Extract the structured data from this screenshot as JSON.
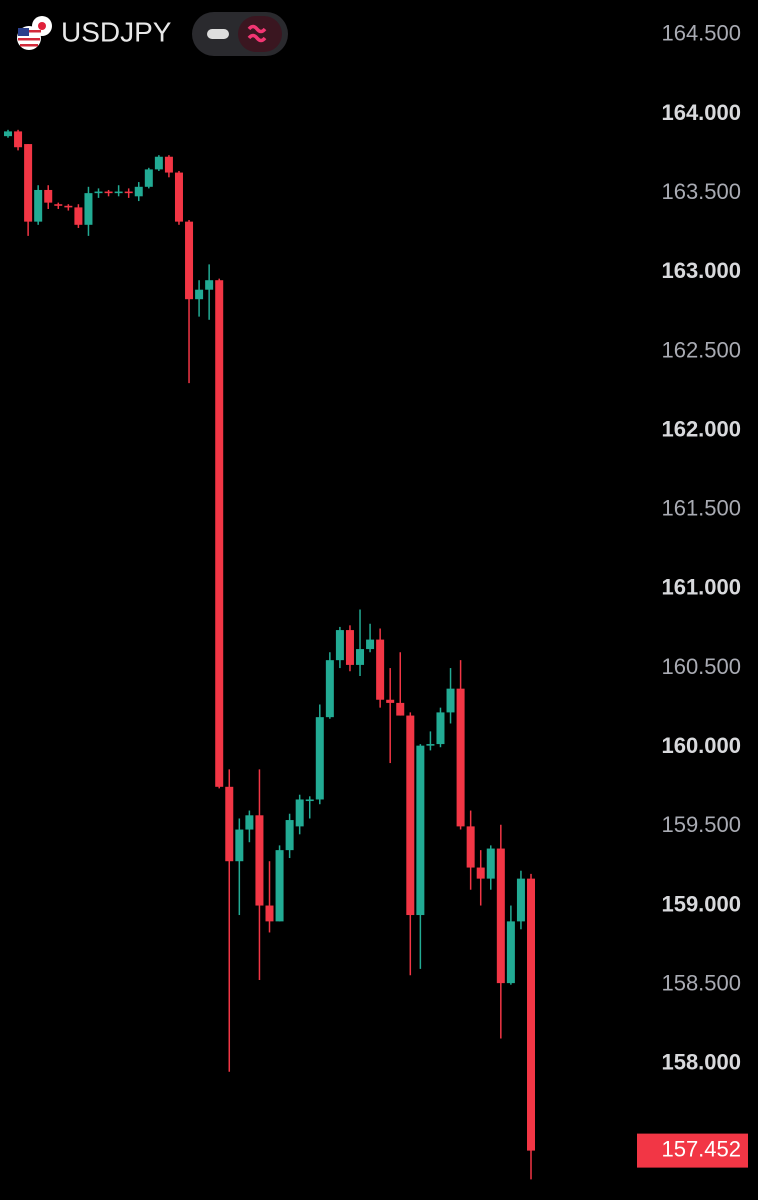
{
  "chart_data": {
    "type": "candlestick",
    "symbol": "USDJPY",
    "ylim": [
      157.14,
      164.72
    ],
    "yticks": [
      {
        "value": 164.5,
        "label": "164.500"
      },
      {
        "value": 164,
        "label": "164.000"
      },
      {
        "value": 163.5,
        "label": "163.500"
      },
      {
        "value": 163,
        "label": "163.000"
      },
      {
        "value": 162.5,
        "label": "162.500"
      },
      {
        "value": 162,
        "label": "162.000"
      },
      {
        "value": 161.5,
        "label": "161.500"
      },
      {
        "value": 161,
        "label": "161.000"
      },
      {
        "value": 160.5,
        "label": "160.500"
      },
      {
        "value": 160,
        "label": "160.000"
      },
      {
        "value": 159.5,
        "label": "159.500"
      },
      {
        "value": 159,
        "label": "159.000"
      },
      {
        "value": 158.5,
        "label": "158.500"
      },
      {
        "value": 158,
        "label": "158.000"
      }
    ],
    "up_color": "#22ab94",
    "down_color": "#f23645",
    "last_price": 157.452,
    "open": [
      163.86,
      163.89,
      163.81,
      163.32,
      163.52,
      163.43,
      163.42,
      163.41,
      163.3,
      163.5,
      163.51,
      163.5,
      163.51,
      163.48,
      163.54,
      163.65,
      163.73,
      163.63,
      163.32,
      162.83,
      162.89,
      162.95,
      159.75,
      159.28,
      159.48,
      159.57,
      159.0,
      158.9,
      159.35,
      159.5,
      159.66,
      159.67,
      160.19,
      160.55,
      160.74,
      160.52,
      160.62,
      160.68,
      160.3,
      160.28,
      160.2,
      158.94,
      160.01,
      160.02,
      160.22,
      160.37,
      159.5,
      159.24,
      159.17,
      159.36,
      158.51,
      158.9,
      159.17
    ],
    "high": [
      163.9,
      163.9,
      163.81,
      163.55,
      163.55,
      163.44,
      163.43,
      163.43,
      163.54,
      163.53,
      163.52,
      163.55,
      163.53,
      163.57,
      163.66,
      163.74,
      163.74,
      163.64,
      163.33,
      162.95,
      163.05,
      162.96,
      159.86,
      159.55,
      159.6,
      159.86,
      159.28,
      159.38,
      159.58,
      159.7,
      159.69,
      160.27,
      160.6,
      160.76,
      160.77,
      160.87,
      160.78,
      160.75,
      160.5,
      160.6,
      160.22,
      160.02,
      160.1,
      160.25,
      160.5,
      160.55,
      159.6,
      159.35,
      159.38,
      159.51,
      159.0,
      159.22,
      159.2
    ],
    "low": [
      163.85,
      163.77,
      163.23,
      163.3,
      163.4,
      163.4,
      163.39,
      163.28,
      163.23,
      163.47,
      163.48,
      163.48,
      163.47,
      163.45,
      163.53,
      163.64,
      163.6,
      163.3,
      162.3,
      162.72,
      162.7,
      159.74,
      157.95,
      158.94,
      159.4,
      158.53,
      158.83,
      158.9,
      159.3,
      159.45,
      159.55,
      159.64,
      160.18,
      160.5,
      160.48,
      160.45,
      160.6,
      160.25,
      159.9,
      160.2,
      158.56,
      158.6,
      159.98,
      160.0,
      160.15,
      159.48,
      159.1,
      159.0,
      159.1,
      158.16,
      158.5,
      158.85,
      157.27
    ],
    "close": [
      163.89,
      163.79,
      163.32,
      163.52,
      163.44,
      163.42,
      163.41,
      163.3,
      163.5,
      163.51,
      163.5,
      163.51,
      163.5,
      163.54,
      163.65,
      163.73,
      163.63,
      163.32,
      162.83,
      162.89,
      162.95,
      159.75,
      159.28,
      159.48,
      159.57,
      159.0,
      158.9,
      159.35,
      159.54,
      159.67,
      159.67,
      160.19,
      160.55,
      160.74,
      160.52,
      160.62,
      160.68,
      160.3,
      160.28,
      160.2,
      158.94,
      160.01,
      160.02,
      160.22,
      160.37,
      159.5,
      159.24,
      159.17,
      159.36,
      158.51,
      158.9,
      159.17,
      157.452
    ]
  }
}
